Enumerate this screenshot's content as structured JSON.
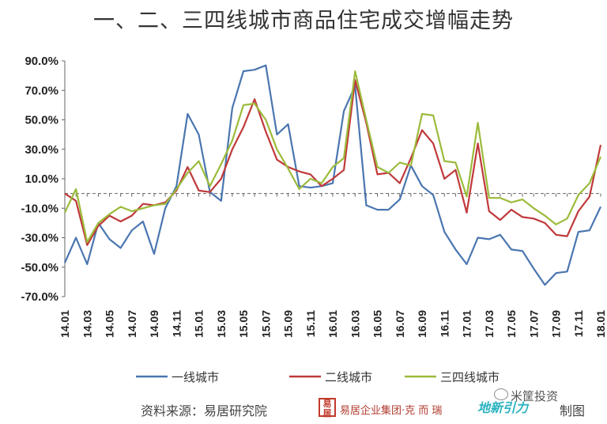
{
  "chart_data": {
    "type": "line",
    "title": "一、二、三四线城市商品住宅成交增幅走势",
    "x": [
      "14.01",
      "14.02",
      "14.03",
      "14.04",
      "14.05",
      "14.06",
      "14.07",
      "14.08",
      "14.09",
      "14.10",
      "14.11",
      "14.12",
      "15.01",
      "15.02",
      "15.03",
      "15.04",
      "15.05",
      "15.06",
      "15.07",
      "15.08",
      "15.09",
      "15.10",
      "15.11",
      "15.12",
      "16.01",
      "16.02",
      "16.03",
      "16.04",
      "16.05",
      "16.06",
      "16.07",
      "16.08",
      "16.09",
      "16.10",
      "16.11",
      "16.12",
      "17.01",
      "17.02",
      "17.03",
      "17.04",
      "17.05",
      "17.06",
      "17.07",
      "17.08",
      "17.09",
      "17.10",
      "17.11",
      "17.12",
      "18.01"
    ],
    "x_tick_labels": [
      "14.01",
      "14.03",
      "14.05",
      "14.07",
      "14.09",
      "14.11",
      "15.01",
      "15.03",
      "15.05",
      "15.07",
      "15.09",
      "15.11",
      "16.01",
      "16.03",
      "16.05",
      "16.07",
      "16.09",
      "16.11",
      "17.01",
      "17.03",
      "17.05",
      "17.07",
      "17.09",
      "17.11",
      "18.01"
    ],
    "y_tick_labels": [
      "90.0%",
      "70.0%",
      "50.0%",
      "30.0%",
      "10.0%",
      "-10.0%",
      "-30.0%",
      "-50.0%",
      "-70.0%"
    ],
    "ylim": [
      -70,
      90
    ],
    "y_ticks": [
      90,
      70,
      50,
      30,
      10,
      -10,
      -30,
      -50,
      -70
    ],
    "zero_line": "dashed",
    "legend_position": "bottom",
    "series": [
      {
        "name": "一线城市",
        "color": "#4a76b0",
        "values": [
          -47,
          -30,
          -48,
          -20,
          -31,
          -37,
          -25,
          -19,
          -41,
          -10,
          5,
          54,
          40,
          1,
          -5,
          58,
          83,
          84,
          87,
          40,
          47,
          5,
          4,
          5,
          7,
          56,
          73,
          -8,
          -11,
          -11,
          -4,
          19,
          5,
          -1,
          -26,
          -38,
          -48,
          -30,
          -31,
          -28,
          -38,
          -39,
          -51,
          -62,
          -54,
          -53,
          -26,
          -25,
          -9
        ]
      },
      {
        "name": "二线城市",
        "color": "#c0393b",
        "values": [
          0,
          -5,
          -35,
          -22,
          -15,
          -19,
          -15,
          -7,
          -8,
          -6,
          2,
          18,
          2,
          1,
          10,
          30,
          45,
          64,
          42,
          23,
          18,
          15,
          13,
          5,
          10,
          16,
          77,
          48,
          13,
          14,
          7,
          24,
          43,
          34,
          10,
          16,
          -13,
          34,
          -12,
          -18,
          -11,
          -16,
          -17,
          -20,
          -28,
          -29,
          -12,
          -2,
          33
        ]
      },
      {
        "name": "三四线城市",
        "color": "#9bbb3b",
        "values": [
          -13,
          3,
          -33,
          -20,
          -14,
          -9,
          -12,
          -10,
          -8,
          -7,
          3,
          14,
          22,
          5,
          20,
          36,
          60,
          61,
          50,
          30,
          17,
          3,
          10,
          7,
          18,
          24,
          83,
          50,
          18,
          14,
          21,
          19,
          54,
          53,
          22,
          21,
          -2,
          48,
          -3,
          -3,
          -6,
          -4,
          -10,
          -15,
          -21,
          -17,
          -1,
          7,
          25
        ]
      }
    ]
  },
  "footer": {
    "source": "资料来源：易居研究院",
    "logo_mark": "易居",
    "company": "易居企业集团·克 而 瑞",
    "partner_logo": "地新引力",
    "made": "制图",
    "watermark": "米筐投资"
  }
}
